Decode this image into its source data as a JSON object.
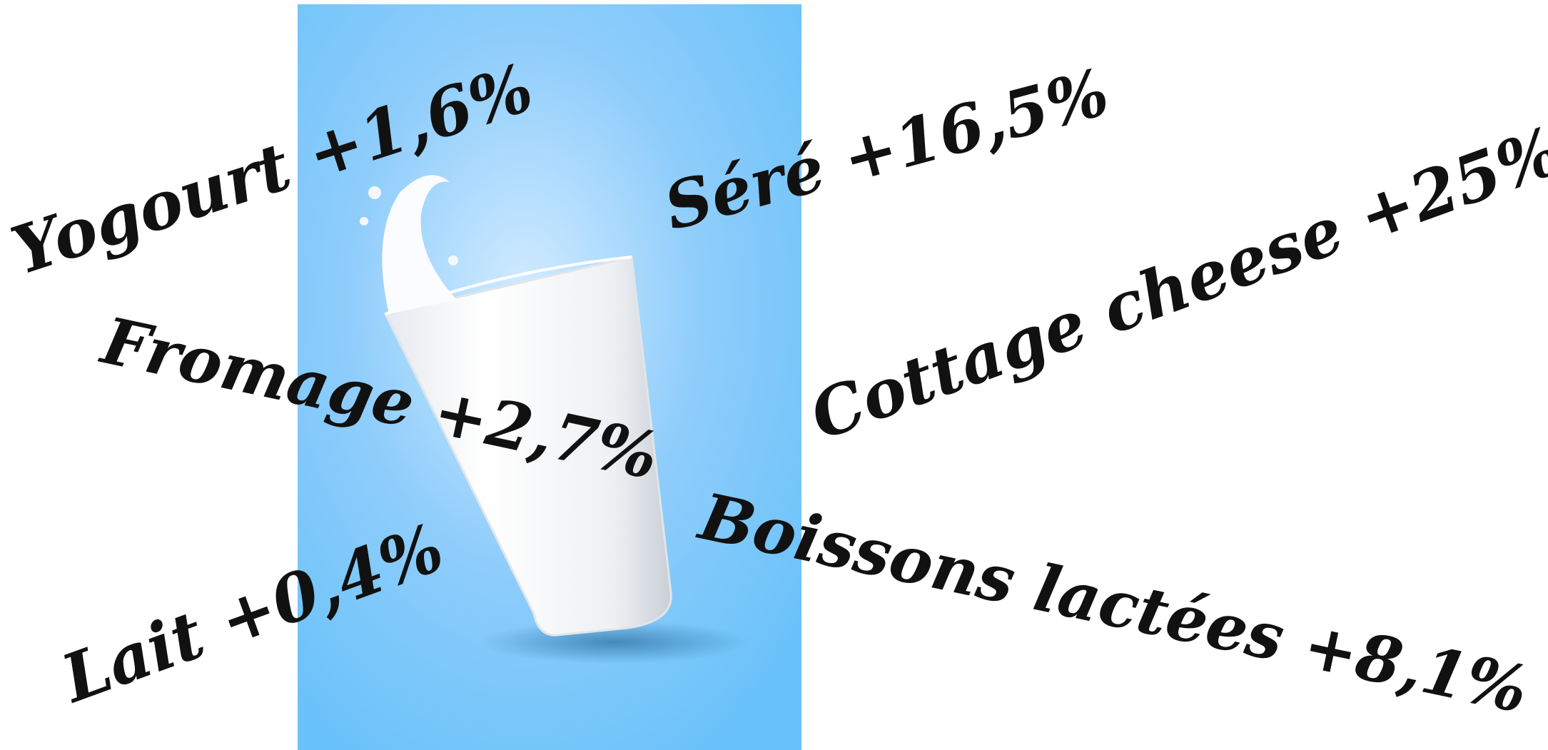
{
  "labels": [
    {
      "text": "Yogourt +1,6%"
    },
    {
      "text": "Séré +16,5%"
    },
    {
      "text": "Cottage cheese +25%"
    },
    {
      "text": "Fromage +2,7%"
    },
    {
      "text": "Lait +0,4%"
    },
    {
      "text": "Boissons lactées +8,1%"
    }
  ]
}
